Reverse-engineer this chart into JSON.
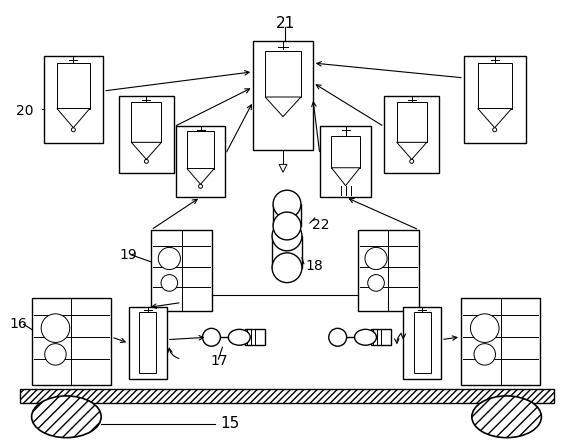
{
  "bg": "#ffffff",
  "figsize": [
    5.74,
    4.45
  ],
  "dpi": 100
}
